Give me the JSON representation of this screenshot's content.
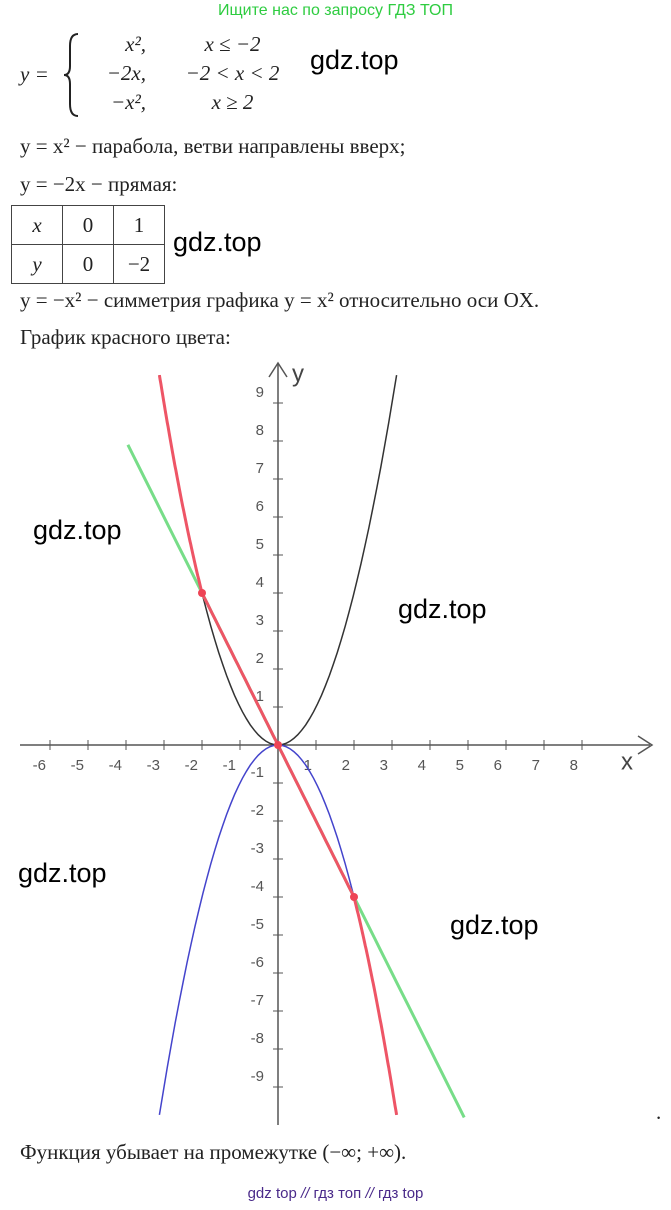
{
  "header": {
    "banner": "Ищите нас по запросу ГДЗ ТОП"
  },
  "system": {
    "lhs": "y =",
    "rows": [
      [
        "x²,",
        "x ≤ −2"
      ],
      [
        "−2x,",
        "−2 < x < 2"
      ],
      [
        "−x²,",
        "x ≥ 2"
      ]
    ]
  },
  "lines": [
    "y = x² − парабола, ветви направлены вверх;",
    "y = −2x − прямая:"
  ],
  "table": {
    "rows": [
      [
        "x",
        "0",
        "1"
      ],
      [
        "y",
        "0",
        "−2"
      ]
    ]
  },
  "after_table": [
    "y = −x² − симметрия графика y = x² относительно оси OX.",
    "График красного цвета:"
  ],
  "watermarks": [
    "gdz.top",
    "gdz.top",
    "gdz.top",
    "gdz.top",
    "gdz.top",
    "gdz.top"
  ],
  "graph": {
    "x_label": "x",
    "y_label": "y",
    "xticks": [
      -6,
      -5,
      -4,
      -3,
      -2,
      -1,
      1,
      2,
      3,
      4,
      5,
      6,
      7,
      8
    ],
    "yticks": [
      -9,
      -8,
      -7,
      -6,
      -5,
      -4,
      -3,
      -2,
      -1,
      1,
      2,
      3,
      4,
      5,
      6,
      7,
      8,
      9
    ],
    "stray_mark": "."
  },
  "conclusion": "Функция убывает на промежутке (−∞; +∞).",
  "footer": {
    "links": [
      "gdz top",
      "гдз топ",
      "гдз top"
    ],
    "separator": "//"
  }
}
